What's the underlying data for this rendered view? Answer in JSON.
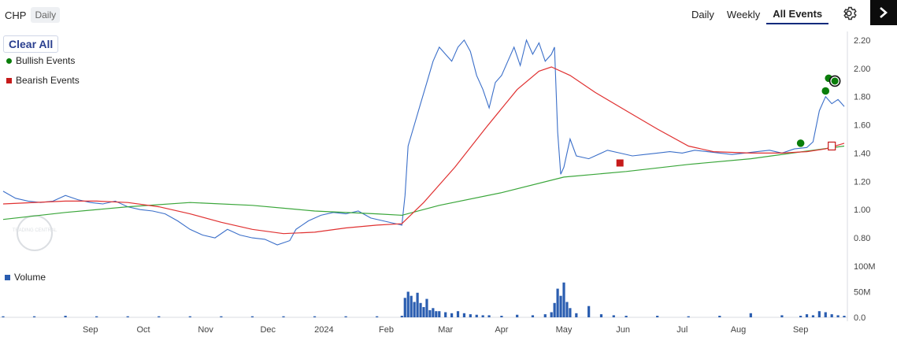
{
  "header": {
    "symbol": "CHP",
    "period": "Daily",
    "tabs": [
      {
        "label": "Daily",
        "active": false
      },
      {
        "label": "Weekly",
        "active": false
      },
      {
        "label": "All Events",
        "active": true
      }
    ]
  },
  "icons": {
    "settings": "gear-icon",
    "next": "chevron-right-icon"
  },
  "legend": {
    "clear_all": "Clear All",
    "bullish": "Bullish Events",
    "bearish": "Bearish Events",
    "volume": "Volume"
  },
  "watermark": "TRADING CENTRAL",
  "colors": {
    "price": "#3b6fc9",
    "ma_red": "#e03131",
    "ma_green": "#3aa63a",
    "bullish": "#0a7d0a",
    "bearish": "#c61a1a",
    "volume": "#2a5db0"
  },
  "chart_data": {
    "type": "line",
    "title": "",
    "x_ticks": [
      "Sep",
      "Oct",
      "Nov",
      "Dec",
      "2024",
      "Feb",
      "Mar",
      "Apr",
      "May",
      "Jun",
      "Jul",
      "Aug",
      "Sep"
    ],
    "y_ticks": [
      "0.80",
      "1.00",
      "1.20",
      "1.40",
      "1.60",
      "1.80",
      "2.00",
      "2.20"
    ],
    "ylim": [
      0.7,
      2.3
    ],
    "volume_ticks": [
      "0.0",
      "50M",
      "100M"
    ],
    "volume_lim": [
      0,
      100
    ],
    "price_series": [
      [
        0,
        1.13
      ],
      [
        4,
        1.08
      ],
      [
        8,
        1.06
      ],
      [
        12,
        1.05
      ],
      [
        16,
        1.06
      ],
      [
        20,
        1.1
      ],
      [
        24,
        1.07
      ],
      [
        28,
        1.05
      ],
      [
        32,
        1.04
      ],
      [
        36,
        1.06
      ],
      [
        40,
        1.02
      ],
      [
        44,
        1.0
      ],
      [
        48,
        0.99
      ],
      [
        52,
        0.97
      ],
      [
        56,
        0.92
      ],
      [
        60,
        0.86
      ],
      [
        64,
        0.82
      ],
      [
        68,
        0.8
      ],
      [
        72,
        0.86
      ],
      [
        76,
        0.82
      ],
      [
        80,
        0.8
      ],
      [
        84,
        0.79
      ],
      [
        88,
        0.75
      ],
      [
        92,
        0.78
      ],
      [
        94,
        0.86
      ],
      [
        98,
        0.92
      ],
      [
        102,
        0.96
      ],
      [
        106,
        0.98
      ],
      [
        110,
        0.97
      ],
      [
        114,
        0.99
      ],
      [
        118,
        0.94
      ],
      [
        122,
        0.92
      ],
      [
        126,
        0.9
      ],
      [
        128,
        0.89
      ],
      [
        129,
        1.1
      ],
      [
        130,
        1.45
      ],
      [
        132,
        1.6
      ],
      [
        134,
        1.75
      ],
      [
        136,
        1.9
      ],
      [
        138,
        2.05
      ],
      [
        140,
        2.15
      ],
      [
        142,
        2.1
      ],
      [
        144,
        2.05
      ],
      [
        146,
        2.15
      ],
      [
        148,
        2.2
      ],
      [
        150,
        2.12
      ],
      [
        152,
        1.95
      ],
      [
        154,
        1.85
      ],
      [
        156,
        1.72
      ],
      [
        158,
        1.9
      ],
      [
        160,
        1.95
      ],
      [
        162,
        2.05
      ],
      [
        164,
        2.15
      ],
      [
        166,
        2.02
      ],
      [
        168,
        2.2
      ],
      [
        170,
        2.1
      ],
      [
        172,
        2.18
      ],
      [
        174,
        2.05
      ],
      [
        176,
        2.1
      ],
      [
        177,
        2.15
      ],
      [
        178,
        1.55
      ],
      [
        179,
        1.25
      ],
      [
        180,
        1.3
      ],
      [
        182,
        1.5
      ],
      [
        184,
        1.38
      ],
      [
        188,
        1.36
      ],
      [
        190,
        1.38
      ],
      [
        194,
        1.42
      ],
      [
        198,
        1.4
      ],
      [
        202,
        1.38
      ],
      [
        206,
        1.39
      ],
      [
        210,
        1.4
      ],
      [
        214,
        1.41
      ],
      [
        218,
        1.4
      ],
      [
        222,
        1.42
      ],
      [
        226,
        1.41
      ],
      [
        230,
        1.4
      ],
      [
        234,
        1.39
      ],
      [
        238,
        1.4
      ],
      [
        242,
        1.41
      ],
      [
        246,
        1.42
      ],
      [
        250,
        1.4
      ],
      [
        254,
        1.43
      ],
      [
        258,
        1.44
      ],
      [
        260,
        1.48
      ],
      [
        262,
        1.7
      ],
      [
        264,
        1.8
      ],
      [
        266,
        1.75
      ],
      [
        268,
        1.78
      ],
      [
        270,
        1.73
      ]
    ],
    "ma_red": [
      [
        0,
        1.04
      ],
      [
        20,
        1.06
      ],
      [
        30,
        1.06
      ],
      [
        40,
        1.05
      ],
      [
        50,
        1.02
      ],
      [
        60,
        0.97
      ],
      [
        70,
        0.91
      ],
      [
        80,
        0.86
      ],
      [
        90,
        0.83
      ],
      [
        100,
        0.84
      ],
      [
        110,
        0.87
      ],
      [
        120,
        0.89
      ],
      [
        128,
        0.9
      ],
      [
        135,
        1.05
      ],
      [
        145,
        1.3
      ],
      [
        155,
        1.58
      ],
      [
        165,
        1.85
      ],
      [
        172,
        1.98
      ],
      [
        176,
        2.01
      ],
      [
        182,
        1.95
      ],
      [
        190,
        1.83
      ],
      [
        200,
        1.7
      ],
      [
        210,
        1.57
      ],
      [
        220,
        1.45
      ],
      [
        228,
        1.41
      ],
      [
        240,
        1.4
      ],
      [
        250,
        1.4
      ],
      [
        258,
        1.41
      ],
      [
        264,
        1.43
      ],
      [
        270,
        1.47
      ]
    ],
    "ma_green": [
      [
        0,
        0.93
      ],
      [
        20,
        0.98
      ],
      [
        40,
        1.02
      ],
      [
        60,
        1.05
      ],
      [
        80,
        1.03
      ],
      [
        100,
        0.99
      ],
      [
        120,
        0.97
      ],
      [
        128,
        0.96
      ],
      [
        140,
        1.03
      ],
      [
        160,
        1.12
      ],
      [
        180,
        1.23
      ],
      [
        200,
        1.27
      ],
      [
        220,
        1.32
      ],
      [
        240,
        1.36
      ],
      [
        260,
        1.42
      ],
      [
        270,
        1.45
      ]
    ],
    "bullish_events": [
      [
        256,
        1.47
      ],
      [
        264,
        1.84
      ],
      [
        265,
        1.93
      ],
      [
        267,
        1.91
      ]
    ],
    "bearish_events": [
      [
        198,
        1.33
      ]
    ],
    "bearish_outline_events": [
      [
        266,
        1.45
      ]
    ],
    "volume": [
      [
        0,
        2
      ],
      [
        10,
        2
      ],
      [
        20,
        3
      ],
      [
        30,
        2
      ],
      [
        40,
        2
      ],
      [
        50,
        2
      ],
      [
        60,
        2
      ],
      [
        70,
        2
      ],
      [
        80,
        2
      ],
      [
        90,
        2
      ],
      [
        100,
        2
      ],
      [
        110,
        2
      ],
      [
        120,
        2
      ],
      [
        128,
        3
      ],
      [
        129,
        38
      ],
      [
        130,
        50
      ],
      [
        131,
        42
      ],
      [
        132,
        30
      ],
      [
        133,
        48
      ],
      [
        134,
        28
      ],
      [
        135,
        20
      ],
      [
        136,
        36
      ],
      [
        137,
        14
      ],
      [
        138,
        18
      ],
      [
        139,
        12
      ],
      [
        140,
        12
      ],
      [
        142,
        10
      ],
      [
        144,
        8
      ],
      [
        146,
        12
      ],
      [
        148,
        8
      ],
      [
        150,
        6
      ],
      [
        152,
        5
      ],
      [
        154,
        4
      ],
      [
        156,
        4
      ],
      [
        160,
        3
      ],
      [
        165,
        5
      ],
      [
        170,
        4
      ],
      [
        174,
        6
      ],
      [
        176,
        10
      ],
      [
        177,
        28
      ],
      [
        178,
        56
      ],
      [
        179,
        42
      ],
      [
        180,
        68
      ],
      [
        181,
        30
      ],
      [
        182,
        18
      ],
      [
        184,
        8
      ],
      [
        188,
        22
      ],
      [
        192,
        6
      ],
      [
        196,
        4
      ],
      [
        200,
        3
      ],
      [
        210,
        3
      ],
      [
        220,
        2
      ],
      [
        230,
        3
      ],
      [
        240,
        8
      ],
      [
        250,
        4
      ],
      [
        256,
        3
      ],
      [
        258,
        6
      ],
      [
        260,
        4
      ],
      [
        262,
        12
      ],
      [
        264,
        10
      ],
      [
        266,
        6
      ],
      [
        268,
        4
      ],
      [
        270,
        3
      ]
    ]
  }
}
